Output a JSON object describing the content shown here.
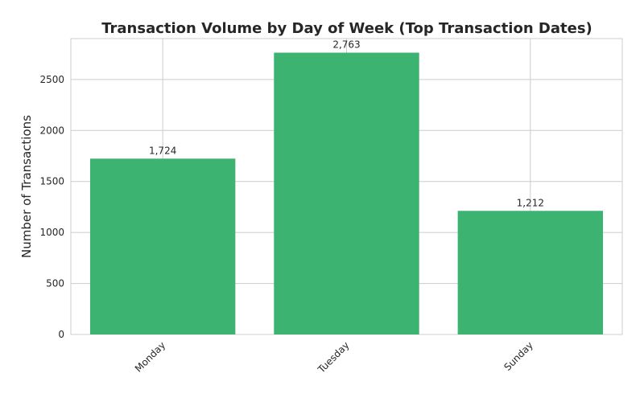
{
  "chart_data": {
    "type": "bar",
    "title": "Transaction Volume by Day of Week (Top Transaction Dates)",
    "xlabel": "",
    "ylabel": "Number of Transactions",
    "categories": [
      "Monday",
      "Tuesday",
      "Sunday"
    ],
    "values": [
      1724,
      2763,
      1212
    ],
    "data_labels": [
      "1,724",
      "2,763",
      "1,212"
    ],
    "yticks": [
      0,
      500,
      1000,
      1500,
      2000,
      2500
    ],
    "ytick_labels": [
      "0",
      "500",
      "1000",
      "1500",
      "2000",
      "2500"
    ],
    "ylim": [
      0,
      2901
    ],
    "grid": true,
    "bar_color": "#3cb371"
  }
}
